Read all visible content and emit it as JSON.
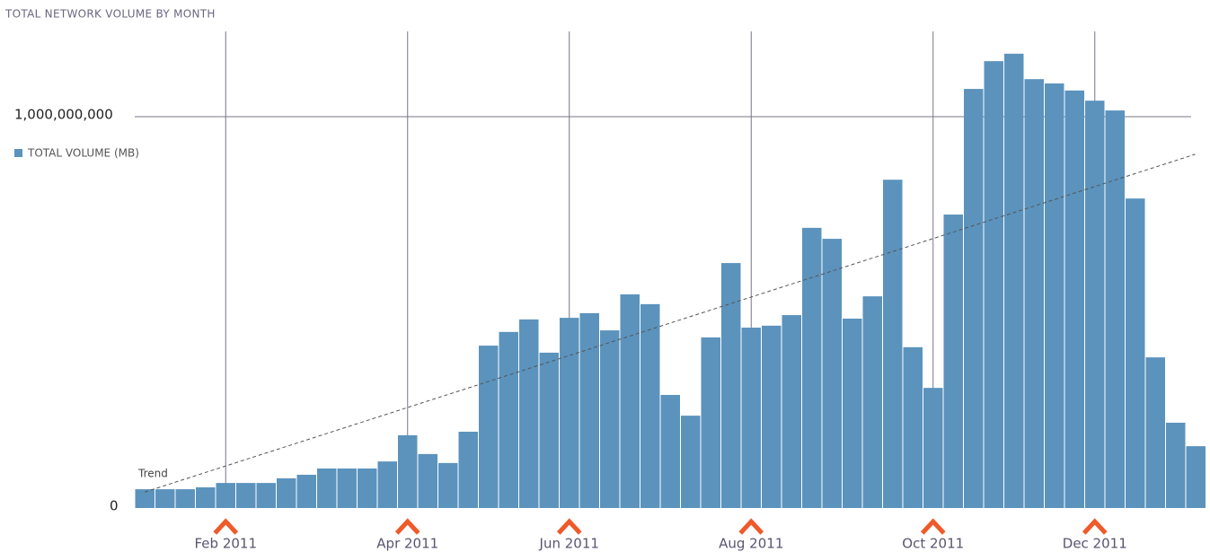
{
  "chart_data": {
    "type": "bar",
    "title": "TOTAL NETWORK VOLUME BY MONTH",
    "categories": [
      null,
      null,
      null,
      null,
      "Feb 2011",
      null,
      null,
      null,
      null,
      null,
      null,
      null,
      null,
      "Apr 2011",
      null,
      null,
      null,
      null,
      null,
      null,
      null,
      "Jun 2011",
      null,
      null,
      null,
      null,
      null,
      null,
      null,
      null,
      "Aug 2011",
      null,
      null,
      null,
      null,
      null,
      null,
      null,
      null,
      "Oct 2011",
      null,
      null,
      null,
      null,
      null,
      null,
      null,
      "Dec 2011",
      null,
      null,
      null,
      null,
      null
    ],
    "series": [
      {
        "name": "TOTAL VOLUME (MB)",
        "color": "#5b93bd",
        "values": [
          48000000,
          48000000,
          48000000,
          53000000,
          64000000,
          64000000,
          64000000,
          76000000,
          85000000,
          101000000,
          101000000,
          101000000,
          119000000,
          186000000,
          138000000,
          115000000,
          195000000,
          415000000,
          450000000,
          482000000,
          397000000,
          486000000,
          498000000,
          454000000,
          546000000,
          521000000,
          289000000,
          236000000,
          436000000,
          626000000,
          461000000,
          466000000,
          493000000,
          716000000,
          688000000,
          484000000,
          541000000,
          839000000,
          411000000,
          307000000,
          750000000,
          1071000000,
          1142000000,
          1161000000,
          1096000000,
          1085000000,
          1067000000,
          1041000000,
          1016000000,
          791000000,
          385000000,
          218000000,
          158000000
        ]
      }
    ],
    "trend": {
      "label": "Trend",
      "values": [
        41000000,
        904000000
      ]
    },
    "ylim": [
      0,
      1218000000
    ],
    "yticks": [
      0,
      {
        "value": 1000000000,
        "label": "1,000,000,000"
      }
    ],
    "grid": true
  }
}
